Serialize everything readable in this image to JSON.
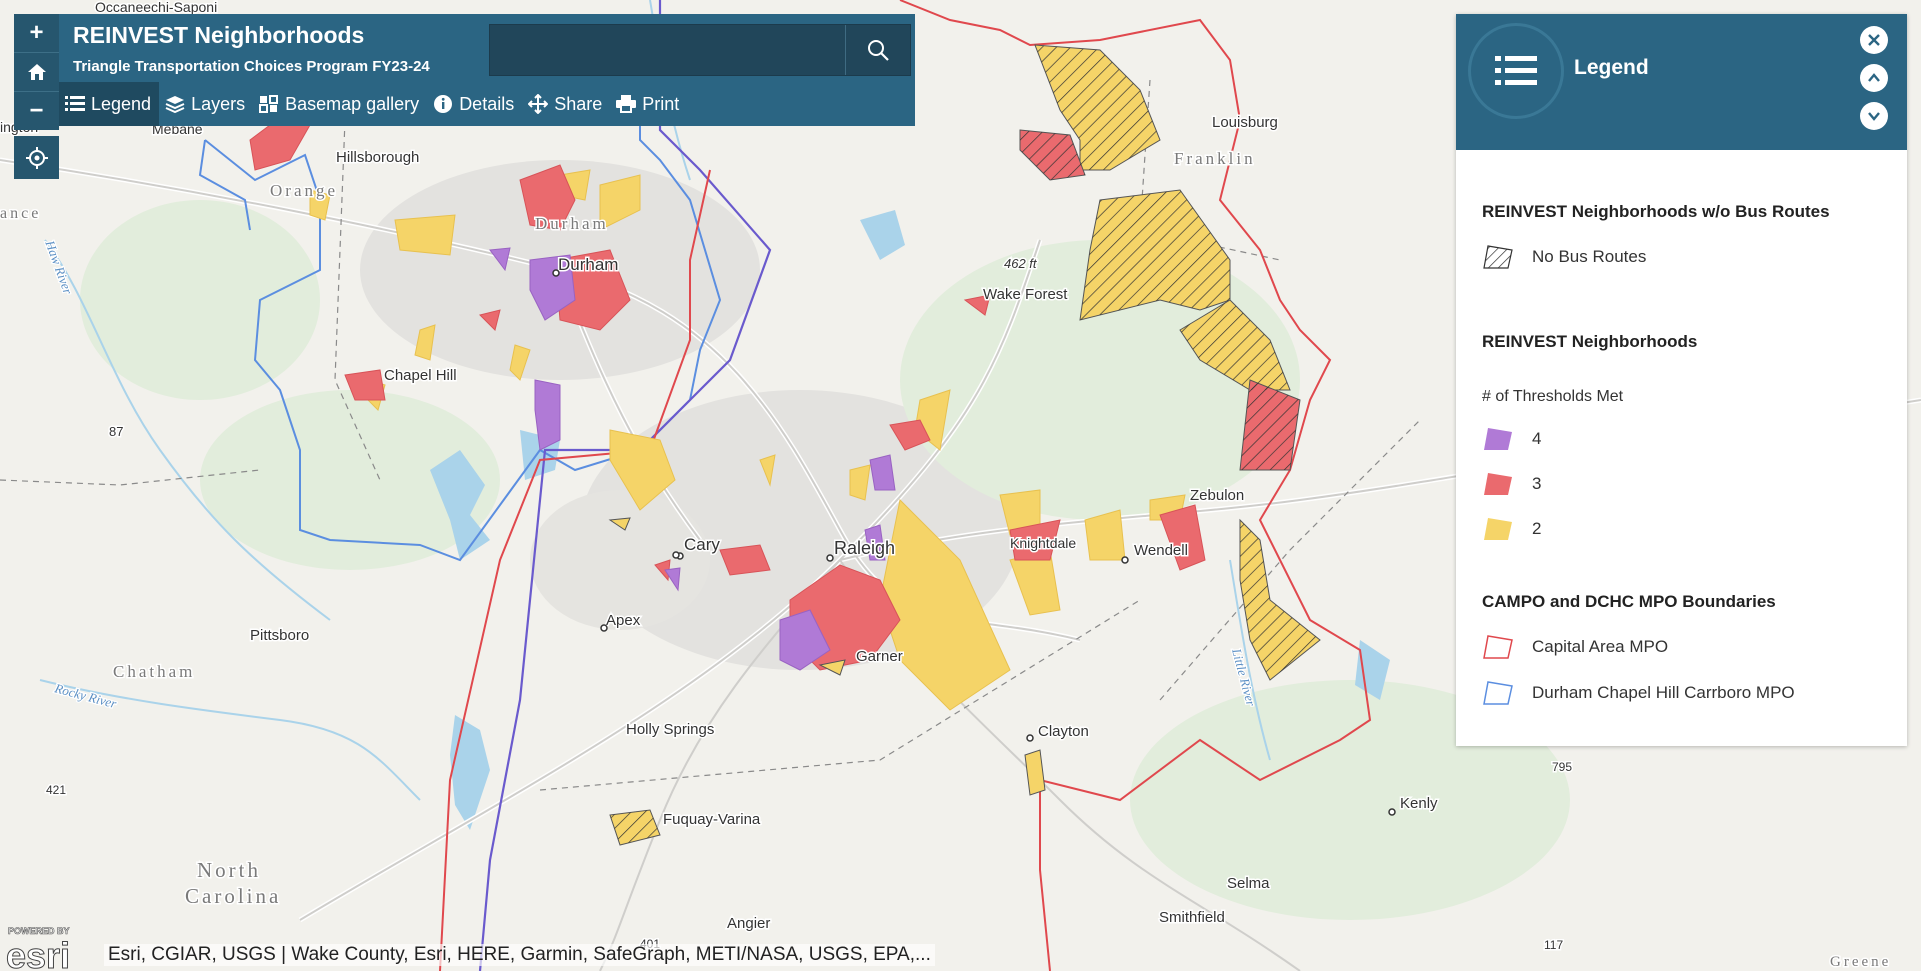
{
  "header": {
    "title": "REINVEST Neighborhoods",
    "subtitle": "Triangle Transportation Choices Program FY23-24",
    "search": {
      "value": "",
      "placeholder": ""
    },
    "tools": [
      {
        "label": "Legend",
        "icon": "legend-list-icon"
      },
      {
        "label": "Layers",
        "icon": "layers-icon"
      },
      {
        "label": "Basemap gallery",
        "icon": "basemap-gallery-icon"
      },
      {
        "label": "Details",
        "icon": "info-icon"
      },
      {
        "label": "Share",
        "icon": "share-icon"
      },
      {
        "label": "Print",
        "icon": "print-icon"
      }
    ]
  },
  "zoom": {
    "in": "+",
    "home": "home-icon",
    "out": "−",
    "locate": "locate-icon"
  },
  "legend": {
    "title": "Legend",
    "sections": [
      {
        "title": "REINVEST Neighborhoods w/o Bus Routes",
        "items": [
          {
            "label": "No Bus Routes"
          }
        ]
      },
      {
        "title": "REINVEST Neighborhoods",
        "subtitle": "# of Thresholds Met",
        "items": [
          {
            "label": "4",
            "color": "#b07ad6"
          },
          {
            "label": "3",
            "color": "#ea6a6e"
          },
          {
            "label": "2",
            "color": "#f5d468"
          }
        ]
      },
      {
        "title": "CAMPO and DCHC MPO Boundaries",
        "items": [
          {
            "label": "Capital Area MPO",
            "color": "#e0484d"
          },
          {
            "label": "Durham Chapel Hill Carrboro MPO",
            "color": "#5b8ee0"
          }
        ]
      }
    ]
  },
  "map": {
    "places": [
      "Occaneechi-Saponi",
      "Mebane",
      "ington",
      "Hillsborough",
      "Orange",
      "ance",
      "Durham",
      "Durham",
      "Chapel Hill",
      "87",
      "Louisburg",
      "Franklin",
      "462 ft",
      "Wake Forest",
      "Cary",
      "Raleigh",
      "Knightdale",
      "Wendell",
      "Zebulon",
      "Apex",
      "Pittsboro",
      "Chatham",
      "Garner",
      "Holly Springs",
      "Clayton",
      "Fuquay-Varina",
      "North",
      "Carolina",
      "Angier",
      "Selma",
      "Smithfield",
      "Kenly",
      "421",
      "401",
      "795",
      "117",
      "Greene"
    ],
    "water": [
      "Haw River",
      "Rocky River",
      "Little River"
    ]
  },
  "attribution": "Esri, CGIAR, USGS | Wake County, Esri, HERE, Garmin, SafeGraph, METI/NASA, USGS, EPA,...",
  "esri_logo": {
    "powered": "POWERED BY",
    "brand": "esri"
  }
}
